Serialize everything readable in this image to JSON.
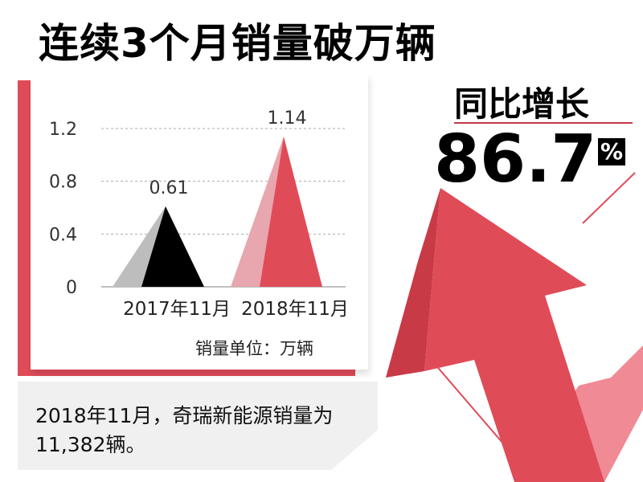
{
  "headline": "连续3个月销量破万辆",
  "yoy": {
    "label": "同比增长",
    "value": "86.7",
    "unit": "%"
  },
  "unit_note": "销量单位：万辆",
  "note": "2018年11月，奇瑞新能源销量为11,382辆。",
  "colors": {
    "accent_red": "#e04b58",
    "light_red": "#e8a6ae",
    "black": "#000000",
    "gray": "#bdbdbd"
  },
  "chart_data": {
    "type": "bar",
    "shape": "triangle",
    "categories": [
      "2017年11月",
      "2018年11月"
    ],
    "values": [
      0.61,
      1.14
    ],
    "value_labels": [
      "0.61",
      "1.14"
    ],
    "ylim": [
      0,
      1.2
    ],
    "yticks": [
      0,
      0.4,
      0.8,
      1.2
    ],
    "ytick_labels": [
      "0",
      "0.4",
      "0.8",
      "1.2"
    ],
    "grid": true,
    "title": "",
    "xlabel": "",
    "ylabel": ""
  }
}
